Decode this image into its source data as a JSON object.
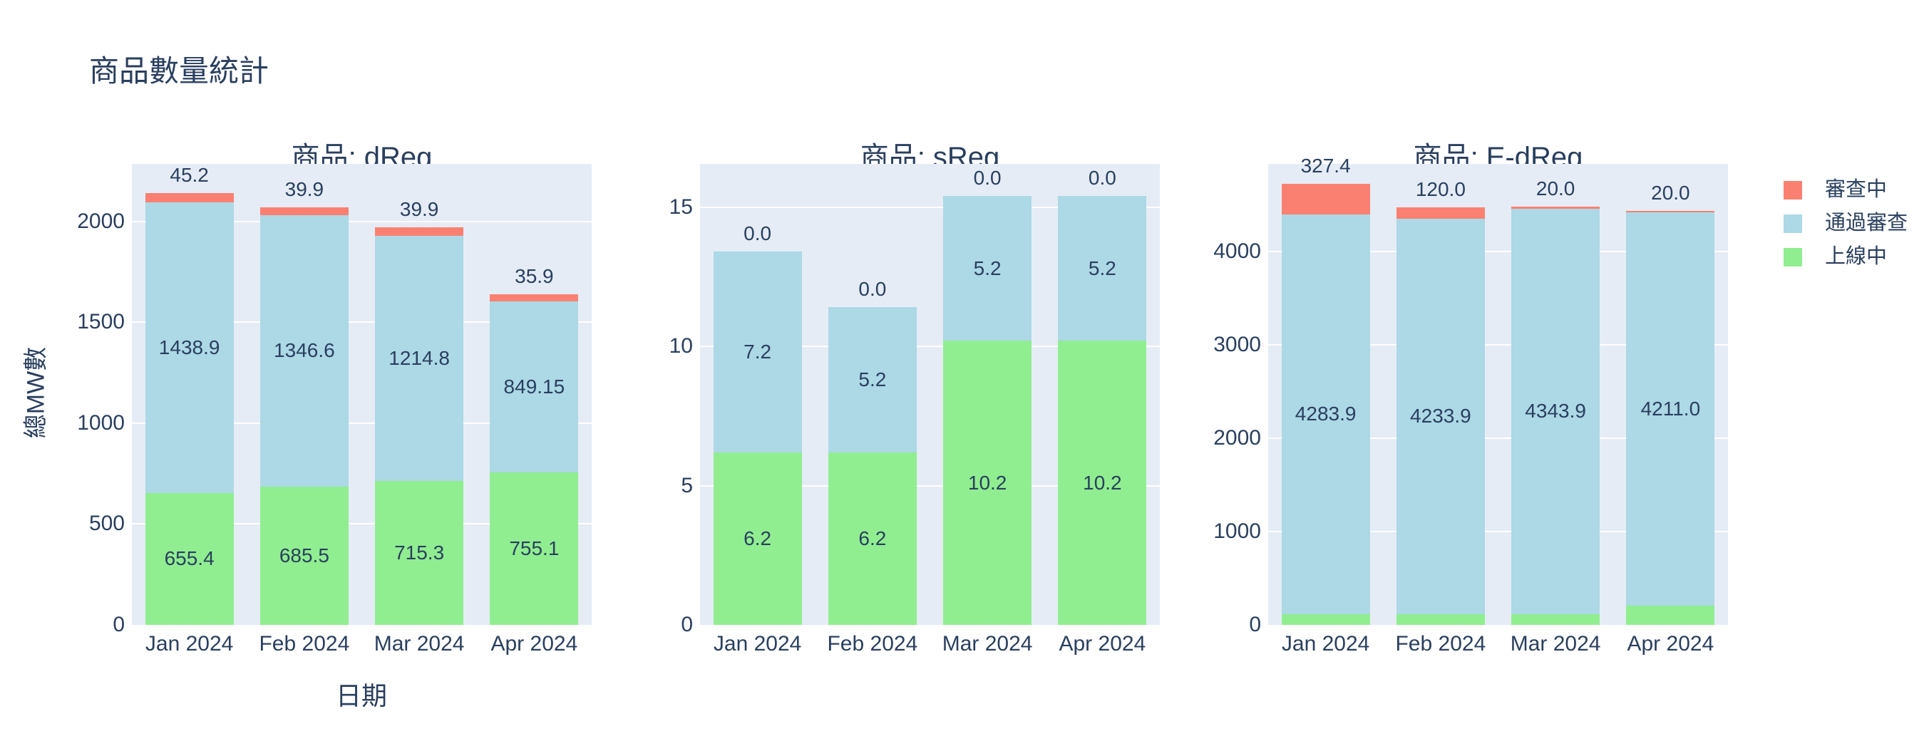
{
  "figure": {
    "title": "商品數量統計",
    "background": "#ffffff",
    "plot_background": "#E5ECF6",
    "text_color": "#2A3F5F",
    "grid_color": "#ffffff"
  },
  "legend": {
    "position": "right",
    "entries": [
      {
        "key": "under-review",
        "label": "審查中",
        "color": "#FA8072"
      },
      {
        "key": "approved",
        "label": "通過審查",
        "color": "#ADD8E6"
      },
      {
        "key": "online",
        "label": "上線中",
        "color": "#90EE90"
      }
    ]
  },
  "chart_data": {
    "type": "bar",
    "mode": "stacked",
    "title": "商品數量統計",
    "xlabel": "日期",
    "ylabel": "總MW數",
    "grid": true,
    "legend_position": "right",
    "categories": [
      "Jan 2024",
      "Feb 2024",
      "Mar 2024",
      "Apr 2024"
    ],
    "facets": [
      {
        "title": "商品: dReg",
        "ylim": [
          0,
          2286
        ],
        "yticks": [
          0,
          500,
          1000,
          1500,
          2000
        ],
        "series": [
          {
            "key": "online",
            "name": "上線中",
            "color": "#90EE90",
            "values": [
              655.4,
              685.5,
              715.3,
              755.1
            ],
            "labels": [
              "655.4",
              "685.5",
              "715.3",
              "755.1"
            ]
          },
          {
            "key": "approved",
            "name": "通過審查",
            "color": "#ADD8E6",
            "values": [
              1438.9,
              1346.6,
              1214.8,
              849.15
            ],
            "labels": [
              "1438.9",
              "1346.6",
              "1214.8",
              "849.15"
            ]
          },
          {
            "key": "under-review",
            "name": "審查中",
            "color": "#FA8072",
            "values": [
              45.2,
              39.9,
              39.9,
              35.9
            ],
            "labels": [
              "45.2",
              "39.9",
              "39.9",
              "35.9"
            ]
          }
        ]
      },
      {
        "title": "商品: sReg",
        "ylim": [
          0,
          16.55
        ],
        "yticks": [
          0,
          5,
          10,
          15
        ],
        "series": [
          {
            "key": "online",
            "name": "上線中",
            "color": "#90EE90",
            "values": [
              6.2,
              6.2,
              10.2,
              10.2
            ],
            "labels": [
              "6.2",
              "6.2",
              "10.2",
              "10.2"
            ]
          },
          {
            "key": "approved",
            "name": "通過審查",
            "color": "#ADD8E6",
            "values": [
              7.2,
              5.2,
              5.2,
              5.2
            ],
            "labels": [
              "7.2",
              "5.2",
              "5.2",
              "5.2"
            ]
          },
          {
            "key": "under-review",
            "name": "審查中",
            "color": "#FA8072",
            "values": [
              0.0,
              0.0,
              0.0,
              0.0
            ],
            "labels": [
              "0.0",
              "0.0",
              "0.0",
              "0.0"
            ]
          }
        ]
      },
      {
        "title": "商品: E-dReg",
        "ylim": [
          0,
          4939
        ],
        "yticks": [
          0,
          1000,
          2000,
          3000,
          4000
        ],
        "series": [
          {
            "key": "online",
            "name": "上線中",
            "color": "#90EE90",
            "values": [
              116.0,
              116.0,
              116.0,
              207.9
            ],
            "labels": [
              "116.0",
              "116.0",
              "116.0",
              "207.9"
            ]
          },
          {
            "key": "approved",
            "name": "通過審查",
            "color": "#ADD8E6",
            "values": [
              4283.9,
              4233.9,
              4343.9,
              4211.0
            ],
            "labels": [
              "4283.9",
              "4233.9",
              "4343.9",
              "4211.0"
            ]
          },
          {
            "key": "under-review",
            "name": "審查中",
            "color": "#FA8072",
            "values": [
              327.4,
              120.0,
              20.0,
              20.0
            ],
            "labels": [
              "327.4",
              "120.0",
              "20.0",
              "20.0"
            ]
          }
        ]
      }
    ]
  }
}
